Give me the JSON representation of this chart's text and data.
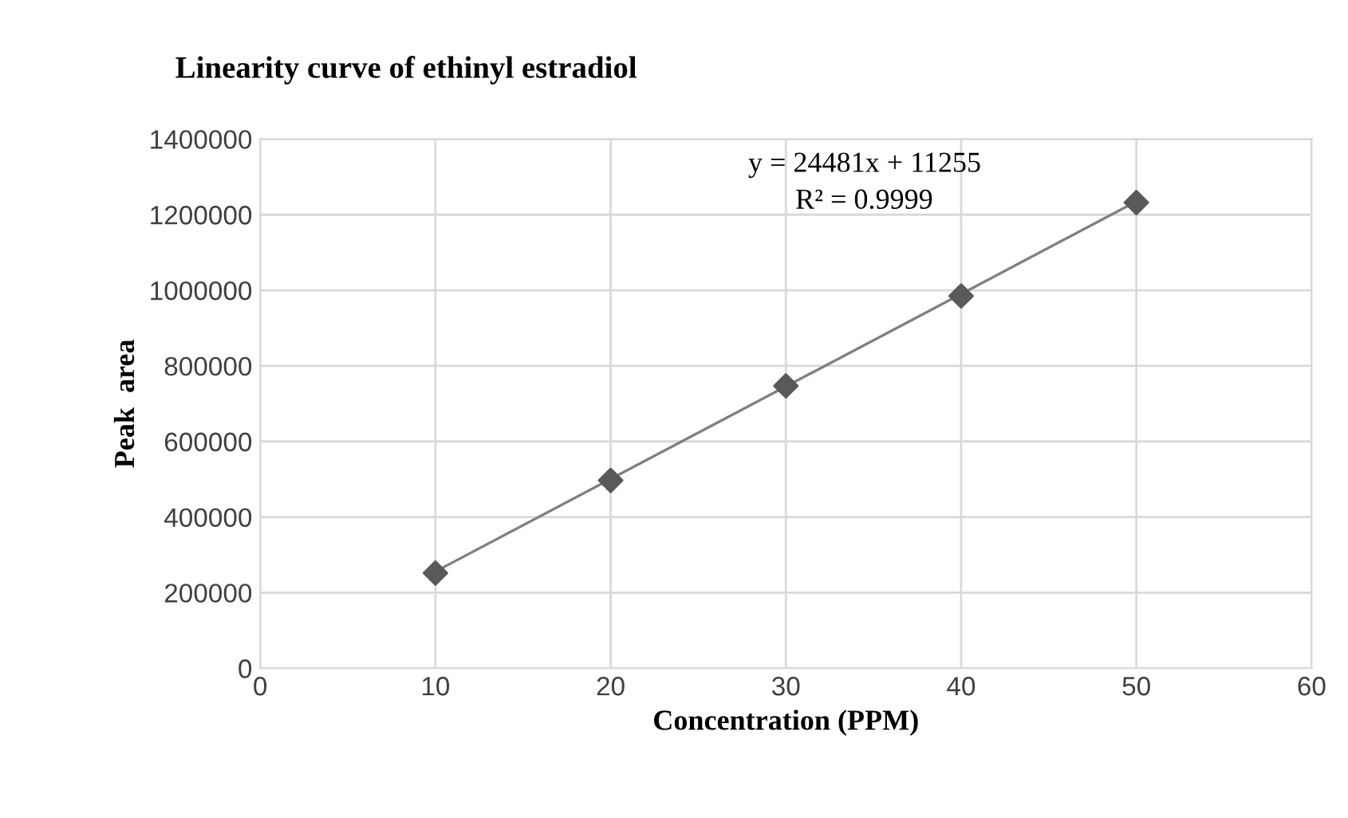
{
  "chart_data": {
    "type": "scatter",
    "title": "Linearity curve of ethinyl estradiol",
    "xlabel": "Concentration (PPM)",
    "ylabel": "Peak  area",
    "series": [
      {
        "color": "#595959",
        "marker": "diamond",
        "x": [
          10,
          20,
          30,
          40,
          50
        ],
        "values": [
          252000,
          497000,
          747000,
          985000,
          1232000
        ]
      },
      {
        "type": "line",
        "color": "#7f7f7f",
        "x": [
          10,
          50
        ],
        "values": [
          256000,
          1235000
        ]
      }
    ],
    "annotations": [
      "y = 24481x + 11255",
      "R² = 0.9999"
    ],
    "xlim": [
      0,
      60
    ],
    "xticks": [
      0,
      10,
      20,
      30,
      40,
      50,
      60
    ],
    "ylim": [
      0,
      1400000
    ],
    "yticks": [
      0,
      200000,
      400000,
      600000,
      800000,
      1000000,
      1200000,
      1400000
    ],
    "grid": true
  }
}
